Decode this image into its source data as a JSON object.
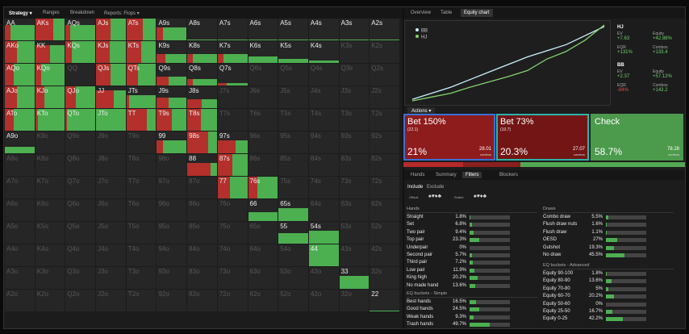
{
  "toolbar": {
    "tabs": [
      "Strategy",
      "Ranges",
      "Breakdown",
      "Reports: Flops"
    ]
  },
  "matrix": {
    "labels": [
      [
        "AA",
        "AKs",
        "AQs",
        "AJs",
        "ATs",
        "A9s",
        "A8s",
        "A7s",
        "A6s",
        "A5s",
        "A4s",
        "A3s",
        "A2s"
      ],
      [
        "AKo",
        "KK",
        "KQs",
        "KJs",
        "KTs",
        "K9s",
        "K8s",
        "K7s",
        "K6s",
        "K5s",
        "K4s",
        "K3s",
        "K2s"
      ],
      [
        "AQo",
        "KQo",
        "QQ",
        "QJs",
        "QTs",
        "Q9s",
        "Q8s",
        "Q7s",
        "Q6s",
        "Q5s",
        "Q4s",
        "Q3s",
        "Q2s"
      ],
      [
        "AJo",
        "KJo",
        "QJo",
        "JJ",
        "JTs",
        "J9s",
        "J8s",
        "J7s",
        "J6s",
        "J5s",
        "J4s",
        "J3s",
        "J2s"
      ],
      [
        "ATo",
        "KTo",
        "QTo",
        "JTo",
        "TT",
        "T9s",
        "T8s",
        "T7s",
        "T6s",
        "T5s",
        "T4s",
        "T3s",
        "T2s"
      ],
      [
        "A9o",
        "K9o",
        "Q9o",
        "J9o",
        "T9o",
        "99",
        "98s",
        "97s",
        "96s",
        "95s",
        "94s",
        "93s",
        "92s"
      ],
      [
        "A8o",
        "K8o",
        "Q8o",
        "J8o",
        "T8o",
        "98o",
        "88",
        "87s",
        "86s",
        "85s",
        "84s",
        "83s",
        "82s"
      ],
      [
        "A7o",
        "K7o",
        "Q7o",
        "J7o",
        "T7o",
        "97o",
        "87o",
        "77",
        "76s",
        "75s",
        "74s",
        "73s",
        "72s"
      ],
      [
        "A6o",
        "K6o",
        "Q6o",
        "J6o",
        "T6o",
        "96o",
        "86o",
        "76o",
        "66",
        "65s",
        "64s",
        "63s",
        "62s"
      ],
      [
        "A5o",
        "K5o",
        "Q5o",
        "J5o",
        "T5o",
        "95o",
        "85o",
        "75o",
        "65o",
        "55",
        "54s",
        "53s",
        "52s"
      ],
      [
        "A4o",
        "K4o",
        "Q4o",
        "J4o",
        "T4o",
        "94o",
        "84o",
        "74o",
        "64o",
        "54o",
        "44",
        "43s",
        "42s"
      ],
      [
        "A3o",
        "K3o",
        "Q3o",
        "J3o",
        "T3o",
        "93o",
        "83o",
        "73o",
        "63o",
        "53o",
        "43o",
        "33",
        "32s"
      ],
      [
        "A2o",
        "K2o",
        "Q2o",
        "J2o",
        "T2o",
        "92o",
        "82o",
        "72o",
        "62o",
        "52o",
        "42o",
        "32o",
        "22"
      ]
    ],
    "cells": [
      [
        [
          70,
          20
        ],
        [
          100,
          60
        ],
        [
          70,
          15
        ],
        [
          100,
          50
        ],
        [
          100,
          55
        ],
        [
          60,
          20
        ],
        [
          5,
          0
        ],
        [
          5,
          0
        ],
        [
          5,
          0
        ],
        [
          5,
          0
        ],
        [
          5,
          0
        ],
        [
          5,
          0
        ],
        [
          5,
          0
        ]
      ],
      [
        [
          100,
          40
        ],
        [
          80,
          50
        ],
        [
          100,
          20
        ],
        [
          100,
          45
        ],
        [
          100,
          50
        ],
        [
          40,
          30
        ],
        [
          40,
          20
        ],
        [
          40,
          20
        ],
        [
          30,
          0
        ],
        [
          20,
          0
        ],
        [
          10,
          0
        ],
        null,
        null
      ],
      [
        [
          100,
          30
        ],
        [
          100,
          20
        ],
        null,
        [
          100,
          50
        ],
        [
          100,
          40
        ],
        [
          40,
          40
        ],
        [
          30,
          20
        ],
        [
          10,
          30
        ],
        null,
        null,
        null,
        null,
        null
      ],
      [
        [
          100,
          40
        ],
        [
          100,
          30
        ],
        [
          100,
          35
        ],
        [
          80,
          60
        ],
        [
          60,
          10
        ],
        [
          50,
          40
        ],
        [
          40,
          50
        ],
        null,
        null,
        null,
        null,
        null,
        null
      ],
      [
        [
          100,
          30
        ],
        [
          100,
          10
        ],
        [
          100,
          5
        ],
        [
          100,
          0
        ],
        [
          100,
          70
        ],
        [
          100,
          50
        ],
        [
          100,
          45
        ],
        null,
        null,
        null,
        null,
        null,
        null
      ],
      [
        [
          30,
          0
        ],
        null,
        null,
        null,
        null,
        [
          60,
          20
        ],
        [
          100,
          70
        ],
        [
          60,
          60
        ],
        null,
        null,
        null,
        null,
        null
      ],
      [
        null,
        null,
        null,
        null,
        null,
        null,
        [
          60,
          80
        ],
        [
          100,
          50
        ],
        null,
        null,
        null,
        null,
        null
      ],
      [
        null,
        null,
        null,
        null,
        null,
        null,
        null,
        [
          100,
          40
        ],
        [
          100,
          30
        ],
        null,
        null,
        null,
        null
      ],
      [
        null,
        null,
        null,
        null,
        null,
        null,
        null,
        null,
        [
          40,
          0
        ],
        [
          60,
          0
        ],
        null,
        null,
        null
      ],
      [
        null,
        null,
        null,
        null,
        null,
        null,
        null,
        null,
        null,
        [
          50,
          0
        ],
        [
          60,
          0
        ],
        null,
        null
      ],
      [
        null,
        null,
        null,
        null,
        null,
        null,
        null,
        null,
        null,
        null,
        [
          100,
          0
        ],
        null,
        null
      ],
      [
        null,
        null,
        null,
        null,
        null,
        null,
        null,
        null,
        null,
        null,
        null,
        [
          60,
          0
        ],
        null
      ],
      [
        null,
        null,
        null,
        null,
        null,
        null,
        null,
        null,
        null,
        null,
        null,
        null,
        [
          5,
          0
        ]
      ]
    ]
  },
  "right_tabs": [
    "Overview",
    "Table",
    "Equity chart"
  ],
  "equity_chart": {
    "type": "line",
    "x": [
      0,
      10,
      20,
      30,
      40,
      50,
      60,
      70,
      80,
      90,
      100
    ],
    "xlim": [
      0,
      100
    ],
    "ylim": [
      0,
      100
    ],
    "series": [
      {
        "name": "BB",
        "color": "#c9f3ff",
        "values": [
          2,
          10,
          18,
          28,
          38,
          48,
          58,
          66,
          74,
          86,
          98
        ]
      },
      {
        "name": "HJ",
        "color": "#7fd36b",
        "values": [
          0,
          5,
          10,
          18,
          25,
          32,
          40,
          55,
          65,
          80,
          100
        ]
      }
    ]
  },
  "players": [
    {
      "name": "HJ",
      "stats": [
        {
          "label": "EV",
          "value": "+7.63"
        },
        {
          "label": "Equity",
          "value": "+42.88%"
        },
        {
          "label": "EQR",
          "value": "+131%"
        },
        {
          "label": "Combos",
          "value": "+133.4"
        }
      ]
    },
    {
      "name": "BB",
      "stats": [
        {
          "label": "EV",
          "value": "+2.37"
        },
        {
          "label": "Equity",
          "value": "+57.12%"
        },
        {
          "label": "EQR",
          "value": "-84%"
        },
        {
          "label": "Combos",
          "value": "+143.2"
        }
      ]
    }
  ],
  "actions": {
    "title": "Actions",
    "combos_word": "combos",
    "options": [
      {
        "name": "Bet 150%",
        "size": "(22.1)",
        "freq": {
          "value": 21,
          "label": "21%"
        },
        "combos": "28.01",
        "color": "#8e1c1c",
        "bar": "#b52a2a",
        "border": "#3d6fd8"
      },
      {
        "name": "Bet 73%",
        "size": "(10.7)",
        "freq": {
          "value": 20.3,
          "label": "20.3%"
        },
        "combos": "27.07",
        "color": "#731515",
        "bar": "#8a1f1f",
        "border": "#2bb3a8"
      },
      {
        "name": "Check",
        "freq": {
          "value": 58.7,
          "label": "58.7%"
        },
        "combos": "78.28",
        "color": "#4c9a4c",
        "bar": "#52a852",
        "border": "#4c9a4c"
      }
    ]
  },
  "filter_tabs": [
    "Hands",
    "Summary",
    "Filters",
    "Blockers"
  ],
  "include_tabs": [
    "Include",
    "Exclude"
  ],
  "suit_labels": [
    "Offsuit",
    "Suited"
  ],
  "groups": [
    {
      "title": "Hands",
      "rows": [
        {
          "name": "Straight",
          "pct": {
            "value": 1.8,
            "label": "1.8%"
          }
        },
        {
          "name": "Set",
          "pct": {
            "value": 6.8,
            "label": "6.8%"
          }
        },
        {
          "name": "Two pair",
          "pct": {
            "value": 9.4,
            "label": "9.4%"
          }
        },
        {
          "name": "Top pair",
          "pct": {
            "value": 23.3,
            "label": "23.3%"
          }
        },
        {
          "name": "Underpair",
          "pct": {
            "value": 0,
            "label": "0%"
          }
        },
        {
          "name": "Second pair",
          "pct": {
            "value": 5.7,
            "label": "5.7%"
          }
        },
        {
          "name": "Third pair",
          "pct": {
            "value": 7.2,
            "label": "7.2%"
          }
        },
        {
          "name": "Low pair",
          "pct": {
            "value": 11.9,
            "label": "11.9%"
          }
        },
        {
          "name": "King high",
          "pct": {
            "value": 20.2,
            "label": "20.2%"
          }
        },
        {
          "name": "No made hand",
          "pct": {
            "value": 13.6,
            "label": "13.6%"
          }
        }
      ]
    },
    {
      "title": "EQ buckets - Simple",
      "rows": [
        {
          "name": "Best hands",
          "pct": {
            "value": 16.5,
            "label": "16.5%"
          }
        },
        {
          "name": "Good hands",
          "pct": {
            "value": 24.5,
            "label": "24.5%"
          }
        },
        {
          "name": "Weak hands",
          "pct": {
            "value": 9.3,
            "label": "9.3%"
          }
        },
        {
          "name": "Trash hands",
          "pct": {
            "value": 49.7,
            "label": "49.7%"
          }
        }
      ]
    },
    {
      "title": "Draws",
      "rows": [
        {
          "name": "Combo draw",
          "pct": {
            "value": 5.5,
            "label": "5.5%"
          }
        },
        {
          "name": "Flush draw nuts",
          "pct": {
            "value": 1.6,
            "label": "1.6%"
          }
        },
        {
          "name": "Flush draw",
          "pct": {
            "value": 1.1,
            "label": "1.1%"
          }
        },
        {
          "name": "OESD",
          "pct": {
            "value": 27,
            "label": "27%"
          }
        },
        {
          "name": "Gutshot",
          "pct": {
            "value": 19.3,
            "label": "19.3%"
          }
        },
        {
          "name": "No draw",
          "pct": {
            "value": 45.5,
            "label": "45.5%"
          }
        }
      ]
    },
    {
      "title": "EQ buckets - Advanced",
      "rows": [
        {
          "name": "Equity 90-100",
          "pct": {
            "value": 1.8,
            "label": "1.8%"
          }
        },
        {
          "name": "Equity 80-90",
          "pct": {
            "value": 13.6,
            "label": "13.6%"
          }
        },
        {
          "name": "Equity 70-80",
          "pct": {
            "value": 5,
            "label": "5%"
          }
        },
        {
          "name": "Equity 60-70",
          "pct": {
            "value": 20.2,
            "label": "20.2%"
          }
        },
        {
          "name": "Equity 50-60",
          "pct": {
            "value": 0,
            "label": "0%"
          }
        },
        {
          "name": "Equity 25-50",
          "pct": {
            "value": 16.7,
            "label": "16.7%"
          }
        },
        {
          "name": "Equity 0-25",
          "pct": {
            "value": 42.2,
            "label": "42.2%"
          }
        }
      ]
    }
  ]
}
